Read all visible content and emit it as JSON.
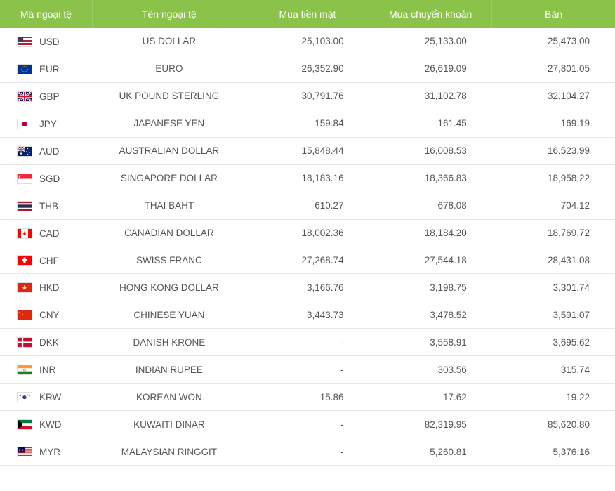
{
  "table": {
    "columns": {
      "code": "Mã ngoại tệ",
      "name": "Tên ngoại tệ",
      "buy_cash": "Mua tiền mặt",
      "buy_transfer": "Mua chuyển khoản",
      "sell": "Bán"
    },
    "header_bg": "#8bc34a",
    "header_fg": "#ffffff",
    "row_border": "#e8e8e8",
    "text_color": "#555555",
    "font_size": 13.5,
    "rows": [
      {
        "code": "USD",
        "name": "US DOLLAR",
        "buy_cash": "25,103.00",
        "buy_transfer": "25,133.00",
        "sell": "25,473.00",
        "flag": "us"
      },
      {
        "code": "EUR",
        "name": "EURO",
        "buy_cash": "26,352.90",
        "buy_transfer": "26,619.09",
        "sell": "27,801.05",
        "flag": "eu"
      },
      {
        "code": "GBP",
        "name": "UK POUND STERLING",
        "buy_cash": "30,791.76",
        "buy_transfer": "31,102.78",
        "sell": "32,104.27",
        "flag": "gb"
      },
      {
        "code": "JPY",
        "name": "JAPANESE YEN",
        "buy_cash": "159.84",
        "buy_transfer": "161.45",
        "sell": "169.19",
        "flag": "jp"
      },
      {
        "code": "AUD",
        "name": "AUSTRALIAN DOLLAR",
        "buy_cash": "15,848.44",
        "buy_transfer": "16,008.53",
        "sell": "16,523.99",
        "flag": "au"
      },
      {
        "code": "SGD",
        "name": "SINGAPORE DOLLAR",
        "buy_cash": "18,183.16",
        "buy_transfer": "18,366.83",
        "sell": "18,958.22",
        "flag": "sg"
      },
      {
        "code": "THB",
        "name": "THAI BAHT",
        "buy_cash": "610.27",
        "buy_transfer": "678.08",
        "sell": "704.12",
        "flag": "th"
      },
      {
        "code": "CAD",
        "name": "CANADIAN DOLLAR",
        "buy_cash": "18,002.36",
        "buy_transfer": "18,184.20",
        "sell": "18,769.72",
        "flag": "ca"
      },
      {
        "code": "CHF",
        "name": "SWISS FRANC",
        "buy_cash": "27,268.74",
        "buy_transfer": "27,544.18",
        "sell": "28,431.08",
        "flag": "ch"
      },
      {
        "code": "HKD",
        "name": "HONG KONG DOLLAR",
        "buy_cash": "3,166.76",
        "buy_transfer": "3,198.75",
        "sell": "3,301.74",
        "flag": "hk"
      },
      {
        "code": "CNY",
        "name": "CHINESE YUAN",
        "buy_cash": "3,443.73",
        "buy_transfer": "3,478.52",
        "sell": "3,591.07",
        "flag": "cn"
      },
      {
        "code": "DKK",
        "name": "DANISH KRONE",
        "buy_cash": "-",
        "buy_transfer": "3,558.91",
        "sell": "3,695.62",
        "flag": "dk"
      },
      {
        "code": "INR",
        "name": "INDIAN RUPEE",
        "buy_cash": "-",
        "buy_transfer": "303.56",
        "sell": "315.74",
        "flag": "in"
      },
      {
        "code": "KRW",
        "name": "KOREAN WON",
        "buy_cash": "15.86",
        "buy_transfer": "17.62",
        "sell": "19.22",
        "flag": "kr"
      },
      {
        "code": "KWD",
        "name": "KUWAITI DINAR",
        "buy_cash": "-",
        "buy_transfer": "82,319.95",
        "sell": "85,620.80",
        "flag": "kw"
      },
      {
        "code": "MYR",
        "name": "MALAYSIAN RINGGIT",
        "buy_cash": "-",
        "buy_transfer": "5,260.81",
        "sell": "5,376.16",
        "flag": "my"
      }
    ]
  }
}
